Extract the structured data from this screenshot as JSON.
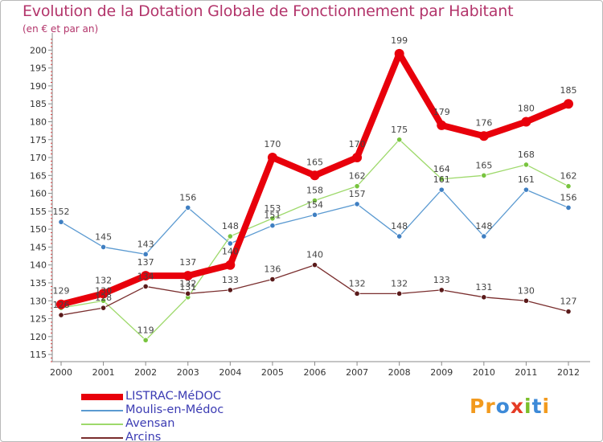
{
  "title": "Evolution de la Dotation Globale de Fonctionnement par Habitant",
  "subtitle": "(en € et par an)",
  "logo": {
    "text": "Proxiti",
    "letters": [
      {
        "ch": "P",
        "color": "#f29a1e"
      },
      {
        "ch": "r",
        "color": "#f29a1e"
      },
      {
        "ch": "o",
        "color": "#3d8ad8"
      },
      {
        "ch": "x",
        "color": "#e53b25"
      },
      {
        "ch": "i",
        "color": "#7bbf2a"
      },
      {
        "ch": "t",
        "color": "#3d8ad8"
      },
      {
        "ch": "i",
        "color": "#f29a1e"
      }
    ]
  },
  "chart_data": {
    "type": "line",
    "title": "Evolution de la Dotation Globale de Fonctionnement par Habitant",
    "subtitle": "(en € et par an)",
    "xlabel": "",
    "ylabel": "",
    "x": [
      "2000",
      "2001",
      "2002",
      "2003",
      "2004",
      "2005",
      "2006",
      "2007",
      "2008",
      "2009",
      "2010",
      "2011",
      "2012"
    ],
    "ylim": [
      113,
      203
    ],
    "yticks": [
      115,
      120,
      125,
      130,
      135,
      140,
      145,
      150,
      155,
      160,
      165,
      170,
      175,
      180,
      185,
      190,
      195,
      200
    ],
    "grid": false,
    "legend_position": "bottom-left",
    "series": [
      {
        "name": "LISTRAC-MéDOC",
        "color": "#e8000b",
        "marker_fill": "#e8000b",
        "emphasis": true,
        "values": [
          129,
          132,
          137,
          137,
          140,
          170,
          165,
          170,
          199,
          179,
          176,
          180,
          185
        ],
        "labels": [
          "129",
          "132",
          "137",
          "137",
          "140",
          "170",
          "165",
          "170",
          "199",
          "179",
          "176",
          "180",
          "185"
        ]
      },
      {
        "name": "Moulis-en-Médoc",
        "color": "#5b9ad1",
        "marker_fill": "#3f7fc2",
        "emphasis": false,
        "values": [
          152,
          145,
          143,
          156,
          146,
          151,
          154,
          157,
          148,
          161,
          148,
          161,
          156
        ],
        "labels": [
          "152",
          "145",
          "143",
          "156",
          "",
          "151",
          "154",
          "157",
          "148",
          "161",
          "148",
          "161",
          "156"
        ]
      },
      {
        "name": "Avensan",
        "color": "#9ed96b",
        "marker_fill": "#78c43e",
        "emphasis": false,
        "values": [
          128,
          130,
          119,
          131,
          148,
          153,
          158,
          162,
          175,
          164,
          165,
          168,
          162
        ],
        "labels": [
          "",
          "130",
          "119",
          "131",
          "148",
          "153",
          "158",
          "162",
          "175",
          "164",
          "165",
          "168",
          "162"
        ]
      },
      {
        "name": "Arcins",
        "color": "#7a2e2e",
        "marker_fill": "#5a1a1a",
        "emphasis": false,
        "values": [
          126,
          128,
          134,
          132,
          133,
          136,
          140,
          132,
          132,
          133,
          131,
          130,
          127
        ],
        "labels": [
          "126",
          "128",
          "134",
          "132",
          "133",
          "136",
          "140",
          "132",
          "132",
          "133",
          "131",
          "130",
          "127"
        ]
      }
    ]
  }
}
